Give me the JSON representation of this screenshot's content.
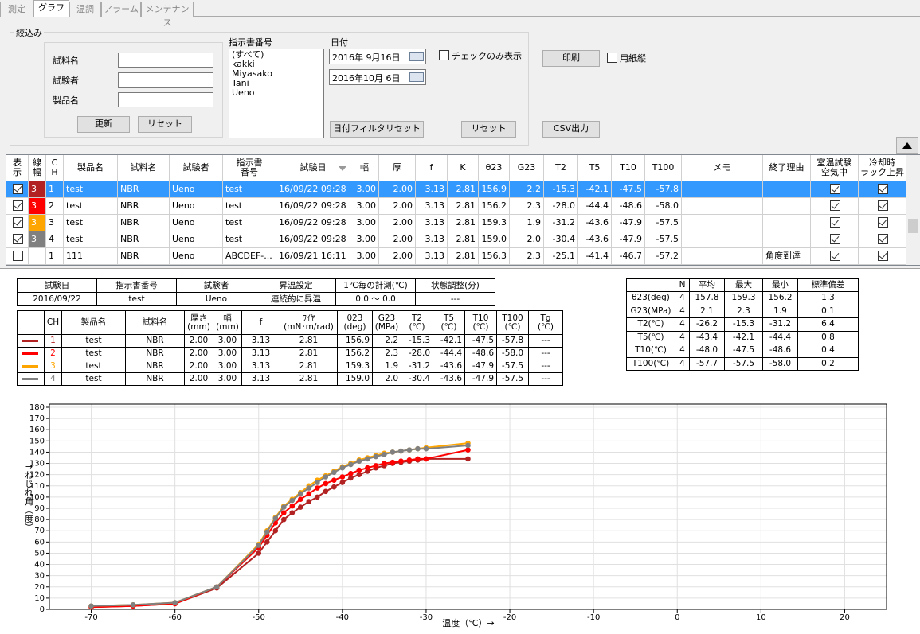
{
  "tabs": [
    "測定",
    "グラフ",
    "温調",
    "アラーム",
    "メンテナンス"
  ],
  "active_tab": 1,
  "filter": {
    "title": "絞込み",
    "fields": [
      "試料名",
      "試験者",
      "製品名"
    ],
    "update": "更新",
    "reset": "リセット",
    "order_label": "指示書番号",
    "orders": [
      "(すべて)",
      "kakki",
      "Miyasako",
      "Tani",
      "Ueno"
    ],
    "date_label": "日付",
    "dates": [
      "2016年  9月16日",
      "2016年10月  6日"
    ],
    "check_only": "チェックのみ表示",
    "date_filter_reset": "日付フィルタリセット",
    "reset2": "リセット"
  },
  "print": "印刷",
  "portrait": "用紙縦",
  "csv": "CSV出力",
  "grid": {
    "selected": 0,
    "headers": [
      "表\n示",
      "線\n幅",
      "C\nH",
      "製品名",
      "試料名",
      "試験者",
      "指示書\n番号",
      "試験日",
      "幅",
      "厚",
      "f",
      "K",
      "θ23",
      "G23",
      "T2",
      "T5",
      "T10",
      "T100",
      "メモ",
      "終了理由",
      "室温試験\n空気中",
      "冷却時\nラック上昇"
    ],
    "rows": [
      [
        true,
        "3",
        "1",
        "test",
        "NBR",
        "Ueno",
        "test",
        "16/09/22 09:28",
        "3.00",
        "2.00",
        "3.13",
        "2.81",
        "156.9",
        "2.2",
        "-15.3",
        "-42.1",
        "-47.5",
        "-57.8",
        null,
        null,
        true,
        true
      ],
      [
        true,
        "3",
        "2",
        "test",
        "NBR",
        "Ueno",
        "test",
        "16/09/22 09:28",
        "3.00",
        "2.00",
        "3.13",
        "2.81",
        "156.2",
        "2.3",
        "-28.0",
        "-44.4",
        "-48.6",
        "-58.0",
        null,
        null,
        true,
        true
      ],
      [
        true,
        "3",
        "3",
        "test",
        "NBR",
        "Ueno",
        "test",
        "16/09/22 09:28",
        "3.00",
        "2.00",
        "3.13",
        "2.81",
        "159.3",
        "1.9",
        "-31.2",
        "-43.6",
        "-47.9",
        "-57.5",
        null,
        null,
        true,
        true
      ],
      [
        true,
        "3",
        "4",
        "test",
        "NBR",
        "Ueno",
        "test",
        "16/09/22 09:28",
        "3.00",
        "2.00",
        "3.13",
        "2.81",
        "159.0",
        "2.0",
        "-30.4",
        "-43.6",
        "-47.9",
        "-57.5",
        null,
        null,
        true,
        true
      ],
      [
        false,
        null,
        "1",
        "111",
        "NBR",
        "Ueno",
        "ABCDEF-...",
        "16/09/21 16:11",
        "3.00",
        "2.00",
        "3.13",
        "2.81",
        "156.3",
        "2.3",
        "-25.1",
        "-41.4",
        "-46.7",
        "-57.2",
        null,
        "角度到達",
        true,
        true
      ]
    ]
  },
  "info": {
    "headers": [
      "試験日",
      "指示書番号",
      "試験者",
      "昇温設定",
      "1℃毎の計測(℃)",
      "状態調整(分)"
    ],
    "values": [
      "2016/09/22",
      "test",
      "Ueno",
      "連続的に昇温",
      "0.0 ～ 0.0",
      "---"
    ]
  },
  "detail": {
    "headers": [
      "CH",
      "製品名",
      "試料名",
      "厚さ\n(mm)",
      "幅\n(mm)",
      "f",
      "ﾜｲﾔ\n(mN･m/rad)",
      "θ23\n(deg)",
      "G23\n(MPa)",
      "T2\n(℃)",
      "T5\n(℃)",
      "T10\n(℃)",
      "T100\n(℃)",
      "Tg\n(℃)"
    ],
    "rows": [
      [
        "1",
        "test",
        "NBR",
        "2.00",
        "3.00",
        "3.13",
        "2.81",
        "156.9",
        "2.2",
        "-15.3",
        "-42.1",
        "-47.5",
        "-57.8",
        "---"
      ],
      [
        "2",
        "test",
        "NBR",
        "2.00",
        "3.00",
        "3.13",
        "2.81",
        "156.2",
        "2.3",
        "-28.0",
        "-44.4",
        "-48.6",
        "-58.0",
        "---"
      ],
      [
        "3",
        "test",
        "NBR",
        "2.00",
        "3.00",
        "3.13",
        "2.81",
        "159.3",
        "1.9",
        "-31.2",
        "-43.6",
        "-47.9",
        "-57.5",
        "---"
      ],
      [
        "4",
        "test",
        "NBR",
        "2.00",
        "3.00",
        "3.13",
        "2.81",
        "159.0",
        "2.0",
        "-30.4",
        "-43.6",
        "-47.9",
        "-57.5",
        "---"
      ]
    ]
  },
  "stats": {
    "headers": [
      "N",
      "平均",
      "最大",
      "最小",
      "標準偏差"
    ],
    "rows": [
      [
        "θ23(deg)",
        "4",
        "157.8",
        "159.3",
        "156.2",
        "1.3"
      ],
      [
        "G23(MPa)",
        "4",
        "2.1",
        "2.3",
        "1.9",
        "0.1"
      ],
      [
        "T2(℃)",
        "4",
        "-26.2",
        "-15.3",
        "-31.2",
        "6.4"
      ],
      [
        "T5(℃)",
        "4",
        "-43.4",
        "-42.1",
        "-44.4",
        "0.8"
      ],
      [
        "T10(℃)",
        "4",
        "-48.0",
        "-47.5",
        "-48.6",
        "0.4"
      ],
      [
        "T100(℃)",
        "4",
        "-57.7",
        "-57.5",
        "-58.0",
        "0.2"
      ]
    ]
  },
  "chart_data": {
    "type": "line",
    "x_label": "温度（℃）→",
    "y_label": "↑ねじれ角（度）",
    "x": [
      -70,
      -65,
      -60,
      -55,
      -50,
      -49,
      -48,
      -47,
      -46,
      -45,
      -44,
      -43,
      -42,
      -41,
      -40,
      -39,
      -38,
      -37,
      -36,
      -35,
      -34,
      -33,
      -32,
      -31,
      -30,
      -25
    ],
    "series": [
      {
        "color": "#b22222",
        "values": [
          2,
          3,
          5,
          19,
          50,
          60,
          70,
          80,
          86,
          91,
          96,
          100,
          105,
          109,
          113,
          117,
          120,
          123,
          126,
          128,
          130,
          131,
          132,
          133,
          134,
          134
        ]
      },
      {
        "color": "#ff0000",
        "values": [
          2,
          3,
          5,
          20,
          55,
          66,
          77,
          86,
          92,
          98,
          103,
          108,
          112,
          115,
          118,
          121,
          124,
          126,
          128,
          130,
          131,
          132,
          133,
          134,
          134,
          142
        ]
      },
      {
        "color": "#ffa500",
        "values": [
          3,
          4,
          6,
          20,
          58,
          70,
          82,
          92,
          98,
          104,
          110,
          115,
          119,
          123,
          127,
          130,
          133,
          135,
          137,
          139,
          140,
          141,
          142,
          143,
          144,
          148
        ]
      },
      {
        "color": "#808080",
        "values": [
          3,
          4,
          6,
          20,
          57,
          69,
          81,
          91,
          97,
          103,
          108,
          113,
          118,
          122,
          126,
          129,
          132,
          134,
          136,
          138,
          140,
          141,
          142,
          143,
          143,
          146
        ]
      }
    ],
    "xlim": [
      -75,
      25
    ],
    "xticks": [
      -70,
      -60,
      -50,
      -40,
      -30,
      -20,
      -10,
      0,
      10,
      20
    ],
    "ylim": [
      0,
      180
    ],
    "yticks": [
      0,
      10,
      20,
      30,
      40,
      50,
      60,
      70,
      80,
      90,
      100,
      110,
      120,
      130,
      140,
      150,
      160,
      170,
      180
    ],
    "grid": true
  }
}
